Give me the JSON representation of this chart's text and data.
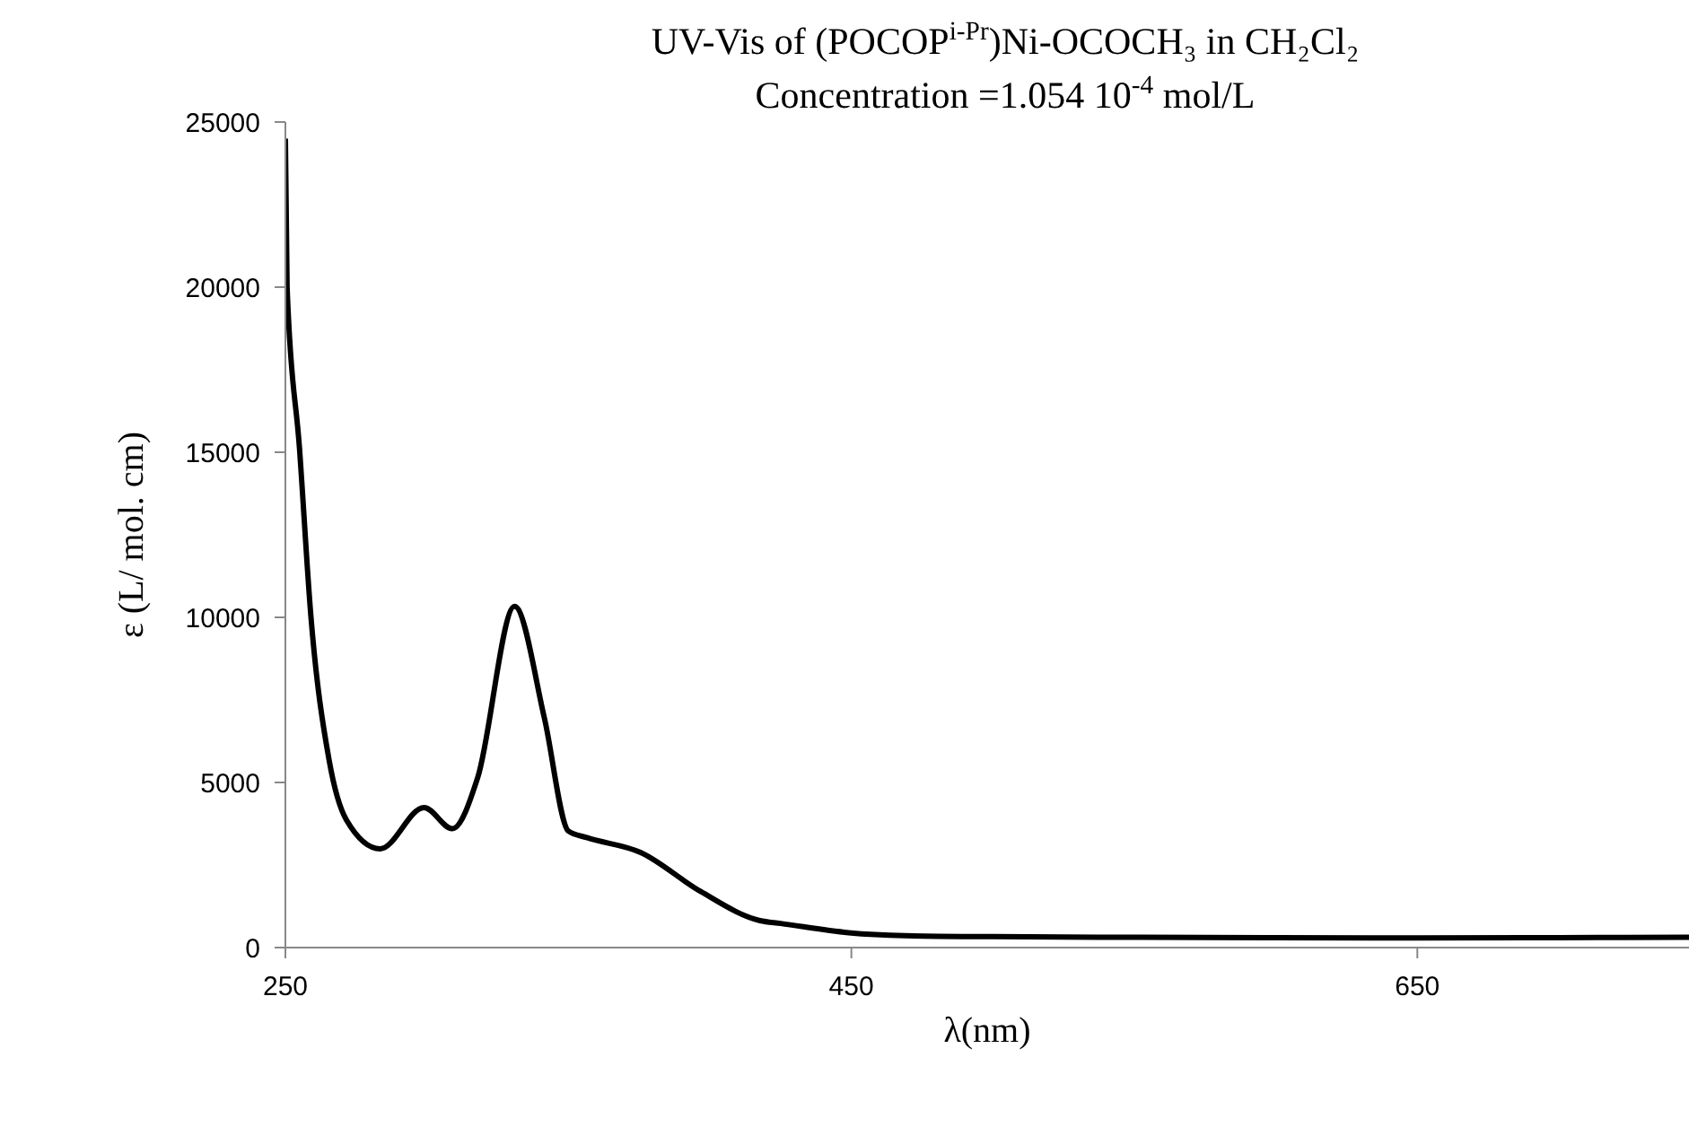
{
  "chart_data": {
    "type": "line",
    "title": "UV-Vis of (POCOP$^{i-Pr}$)Ni-OCOCH₃ in CH₂Cl₂",
    "subtitle": "Concentration =1.054 10$^{-4}$ mol/L",
    "xlabel": "λ(nm)",
    "ylabel": "ε (L/ mol. cm)",
    "series": [
      {
        "color": "#000000",
        "x": [
          250,
          250.6,
          255,
          259,
          265.4,
          271.6,
          283.5,
          299,
          309,
          318,
          331,
          341.5,
          350,
          356.5,
          375.5,
          396.7,
          417.7,
          425,
          449,
          469,
          500,
          550,
          600,
          650,
          700,
          746
        ],
        "values": [
          24500,
          20000,
          15100,
          10050,
          5700,
          3860,
          2990,
          4240,
          3600,
          5160,
          10330,
          6960,
          3530,
          3330,
          2880,
          1700,
          815,
          730,
          450,
          360,
          330,
          310,
          300,
          290,
          300,
          310
        ]
      }
    ],
    "xlim": [
      250,
      746
    ],
    "xticks": [
      250,
      450,
      650
    ],
    "ylim": [
      0,
      25000
    ],
    "yticks": [
      0,
      5000,
      10000,
      15000,
      20000,
      25000
    ],
    "grid": false,
    "legend": false,
    "marker": "none",
    "line_style": "solid"
  }
}
